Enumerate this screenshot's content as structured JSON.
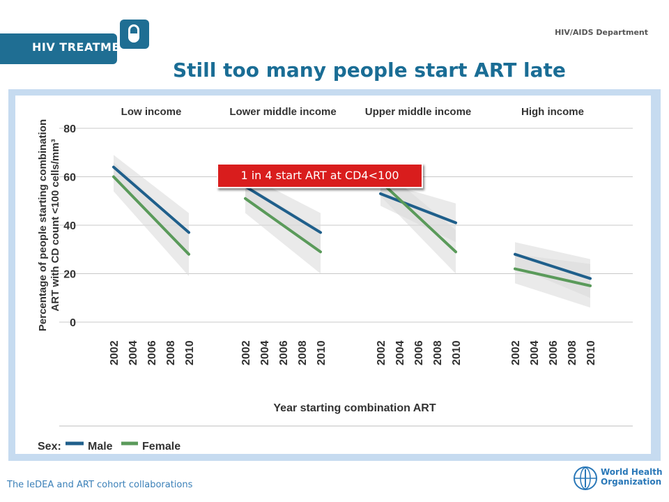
{
  "header": {
    "badge": "HIV TREATMENT",
    "department": "HIV/AIDS Department",
    "title": "Still too many people start ART late"
  },
  "callout": "1 in 4 start ART at CD4<100",
  "footer": {
    "source": "The IeDEA and ART cohort collaborations",
    "logo_line1": "World Health",
    "logo_line2": "Organization"
  },
  "colors": {
    "male": "#1f5f8b",
    "female": "#5a9a5a",
    "band": "#d9d9d9",
    "accent": "#1a6d95",
    "callout": "#d91d1d"
  },
  "chart_data": {
    "type": "line",
    "ylabel": "Percentage of people starting combination ART with CD count <100 cells/mm³",
    "ylabel_line1": "Percentage of people starting combination",
    "ylabel_line2": "ART with CD count <100 cells/mm³",
    "xlabel": "Year starting combination ART",
    "ylim": [
      0,
      80
    ],
    "yticks": [
      0,
      20,
      40,
      60,
      80
    ],
    "xticks": [
      "2002",
      "2004",
      "2006",
      "2008",
      "2010"
    ],
    "legend_title": "Sex:",
    "legend_position": "bottom-left",
    "grid": true,
    "panels": [
      {
        "title": "Low income",
        "series": [
          {
            "name": "Male",
            "x": [
              2002,
              2010
            ],
            "y": [
              64,
              37
            ]
          },
          {
            "name": "Female",
            "x": [
              2002,
              2010
            ],
            "y": [
              60,
              28
            ]
          }
        ]
      },
      {
        "title": "Lower middle income",
        "series": [
          {
            "name": "Male",
            "x": [
              2002,
              2010
            ],
            "y": [
              56,
              37
            ]
          },
          {
            "name": "Female",
            "x": [
              2002,
              2010
            ],
            "y": [
              51,
              29
            ]
          }
        ]
      },
      {
        "title": "Upper middle income",
        "series": [
          {
            "name": "Male",
            "x": [
              2002,
              2010
            ],
            "y": [
              53,
              41
            ]
          },
          {
            "name": "Female",
            "x": [
              2002,
              2010
            ],
            "y": [
              58,
              29
            ]
          }
        ]
      },
      {
        "title": "High income",
        "series": [
          {
            "name": "Male",
            "x": [
              2002,
              2010
            ],
            "y": [
              28,
              18
            ]
          },
          {
            "name": "Female",
            "x": [
              2002,
              2010
            ],
            "y": [
              22,
              15
            ]
          }
        ]
      }
    ]
  }
}
